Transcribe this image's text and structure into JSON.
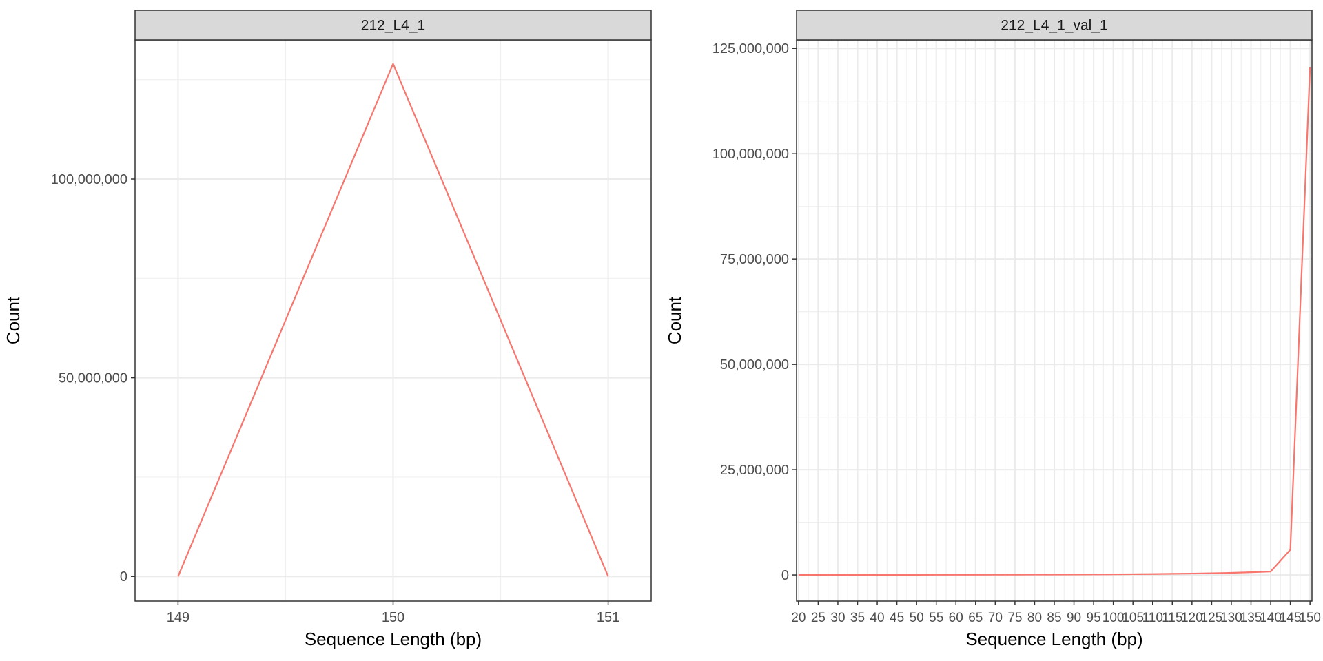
{
  "chart_data": [
    {
      "type": "line",
      "facet_title": "212_L4_1",
      "xlabel": "Sequence Length (bp)",
      "ylabel": "Count",
      "xlim": [
        148.8,
        151.2
      ],
      "ylim": [
        -6200000,
        135000000
      ],
      "x_ticks": [
        149,
        150,
        151
      ],
      "x_tick_labels": [
        "149",
        "150",
        "151"
      ],
      "y_ticks": [
        0,
        50000000,
        100000000
      ],
      "y_tick_labels": [
        "0",
        "50,000,000",
        "100,000,000"
      ],
      "grid": true,
      "line_color": "#F8766D",
      "series": [
        {
          "x": [
            149,
            150,
            151
          ],
          "y": [
            0,
            129000000,
            0
          ]
        }
      ]
    },
    {
      "type": "line",
      "facet_title": "212_L4_1_val_1",
      "xlabel": "Sequence Length (bp)",
      "ylabel": "Count",
      "xlim": [
        19.5,
        150.5
      ],
      "ylim": [
        -6200000,
        127000000
      ],
      "x_ticks": [
        20,
        25,
        30,
        35,
        40,
        45,
        50,
        55,
        60,
        65,
        70,
        75,
        80,
        85,
        90,
        95,
        100,
        105,
        110,
        115,
        120,
        125,
        130,
        135,
        140,
        145,
        150
      ],
      "x_tick_labels": [
        "20",
        "25",
        "30",
        "35",
        "40",
        "45",
        "50",
        "55",
        "60",
        "65",
        "70",
        "75",
        "80",
        "85",
        "90",
        "95",
        "100",
        "105",
        "110",
        "115",
        "120",
        "125",
        "130",
        "135",
        "140",
        "145",
        "150"
      ],
      "y_ticks": [
        0,
        25000000,
        50000000,
        75000000,
        100000000,
        125000000
      ],
      "y_tick_labels": [
        "0",
        "25,000,000",
        "50,000,000",
        "75,000,000",
        "100,000,000",
        "125,000,000"
      ],
      "grid": true,
      "line_color": "#F8766D",
      "series": [
        {
          "x": [
            20,
            25,
            30,
            35,
            40,
            45,
            50,
            55,
            60,
            65,
            70,
            75,
            80,
            85,
            90,
            95,
            100,
            105,
            110,
            115,
            120,
            125,
            130,
            135,
            140,
            145,
            150
          ],
          "y": [
            0,
            10000,
            15000,
            20000,
            25000,
            30000,
            35000,
            40000,
            50000,
            55000,
            60000,
            70000,
            80000,
            90000,
            100000,
            120000,
            150000,
            180000,
            220000,
            270000,
            330000,
            400000,
            500000,
            650000,
            800000,
            6000000,
            120500000
          ]
        }
      ]
    }
  ]
}
